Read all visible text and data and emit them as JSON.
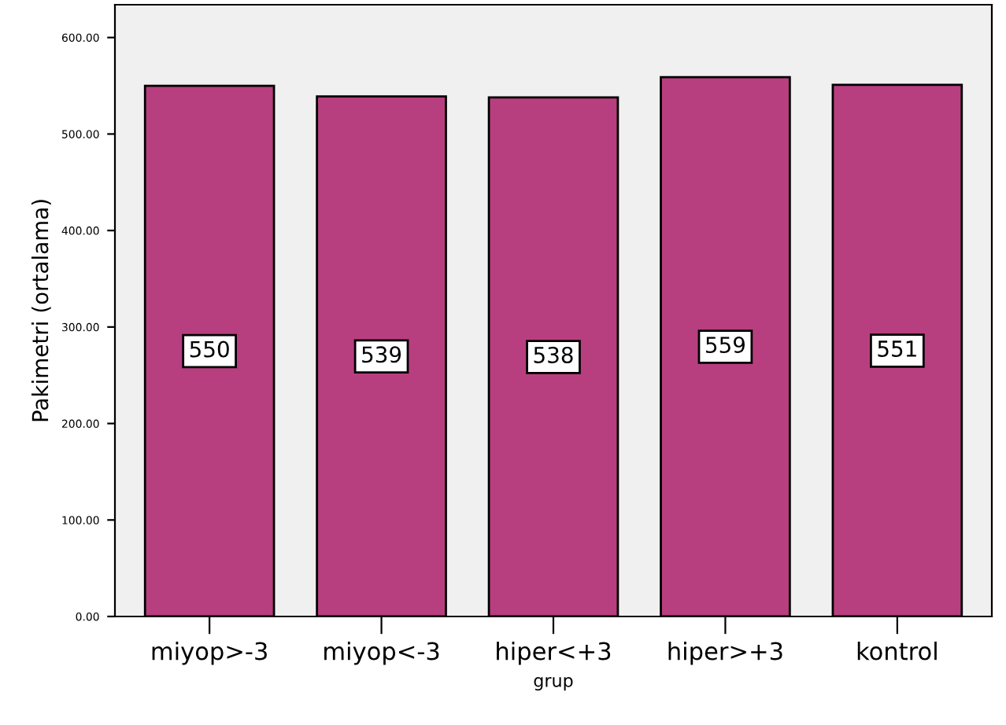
{
  "chart_data": {
    "type": "bar",
    "xlabel": "grup",
    "ylabel": "Pakimetri (ortalama)",
    "categories": [
      "miyop>-3",
      "miyop<-3",
      "hiper<+3",
      "hiper>+3",
      "kontrol"
    ],
    "values": [
      550,
      539,
      538,
      559,
      551
    ],
    "color": "#b83f7f",
    "data_labels": true,
    "ylim": [
      0,
      634
    ],
    "yticks": [
      {
        "value": 0,
        "label": "0.00"
      },
      {
        "value": 100,
        "label": "100.00"
      },
      {
        "value": 200,
        "label": "200.00"
      },
      {
        "value": 300,
        "label": "300.00"
      },
      {
        "value": 400,
        "label": "400.00"
      },
      {
        "value": 500,
        "label": "500.00"
      },
      {
        "value": 600,
        "label": "600.00"
      }
    ],
    "grid": false,
    "legend": false
  }
}
